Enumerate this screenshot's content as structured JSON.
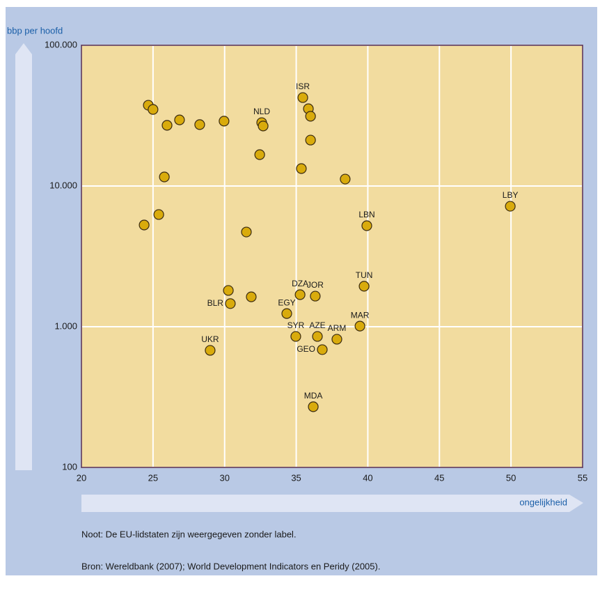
{
  "chart_data": {
    "type": "scatter",
    "y_label": "bbp per hoofd",
    "x_label": "ongelijkheid",
    "notes": [
      "Noot: De EU-lidstaten zijn weergegeven zonder label.",
      "Bron: Wereldbank (2007); World Development Indicators en Peridy (2005)."
    ],
    "log_y": true,
    "grid": true,
    "color": "#d9ab0c",
    "xlim": [
      20,
      55
    ],
    "xticks": [
      20,
      25,
      30,
      35,
      40,
      45,
      50,
      55
    ],
    "ylim": [
      100,
      100000
    ],
    "yticks": [
      100,
      {
        "value": 1000,
        "label": "1.000"
      },
      {
        "value": 10000,
        "label": "10.000"
      },
      {
        "value": 100000,
        "label": "100.000"
      }
    ],
    "x": [
      24.67,
      25.0,
      25.98,
      26.85,
      28.26,
      29.96,
      32.59,
      32.69,
      32.45,
      35.46,
      35.85,
      36.0,
      36.0,
      35.36,
      38.42,
      25.79,
      25.4,
      24.38,
      31.52,
      49.95,
      39.93,
      39.74,
      30.26,
      30.4,
      31.86,
      35.27,
      36.33,
      34.34,
      39.45,
      34.97,
      36.48,
      37.84,
      36.82,
      28.99,
      36.19
    ],
    "values": [
      37500,
      35000,
      27000,
      29500,
      27300,
      28900,
      28200,
      26700,
      16700,
      42500,
      35400,
      31300,
      21200,
      13300,
      11200,
      11600,
      6270,
      5280,
      4710,
      7180,
      5220,
      1940,
      1810,
      1460,
      1630,
      1690,
      1650,
      1240,
      1010,
      853,
      853,
      815,
      687,
      679,
      270
    ],
    "labels": [
      null,
      null,
      null,
      null,
      null,
      null,
      "NLD",
      null,
      null,
      "ISR",
      null,
      null,
      null,
      null,
      null,
      null,
      null,
      null,
      null,
      "LBY",
      "LBN",
      "TUN",
      null,
      "BLR",
      null,
      "DZA",
      "JOR",
      "EGY",
      "MAR",
      "SYR",
      "AZE",
      "ARM",
      "GEO",
      "UKR",
      "MDA"
    ]
  }
}
